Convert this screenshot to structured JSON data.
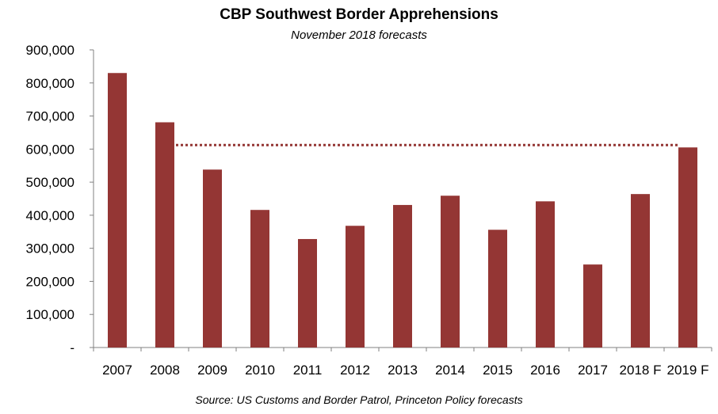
{
  "chart_data": {
    "type": "bar",
    "title": "CBP Southwest Border Apprehensions",
    "subtitle": "November 2018 forecasts",
    "source": "Source: US Customs and Border Patrol, Princeton Policy forecasts",
    "categories": [
      "2007",
      "2008",
      "2009",
      "2010",
      "2011",
      "2012",
      "2013",
      "2014",
      "2015",
      "2016",
      "2017",
      "2018 F",
      "2019 F"
    ],
    "values": [
      830000,
      681000,
      538000,
      416000,
      328000,
      368000,
      431000,
      459000,
      356000,
      442000,
      251000,
      464000,
      605000
    ],
    "ylim": [
      0,
      900000
    ],
    "yticks": [
      0,
      100000,
      200000,
      300000,
      400000,
      500000,
      600000,
      700000,
      800000,
      900000
    ],
    "ytick_labels": [
      "-",
      "100,000",
      "200,000",
      "300,000",
      "400,000",
      "500,000",
      "600,000",
      "700,000",
      "800,000",
      "900,000"
    ],
    "reference_line": {
      "value": 605000,
      "from_category": "2008",
      "to_category": "2019 F",
      "style": "dotted"
    },
    "grid": false,
    "legend": "none",
    "bar_color": "#943634",
    "reference_line_color": "#943634",
    "axis_color": "#808080"
  }
}
